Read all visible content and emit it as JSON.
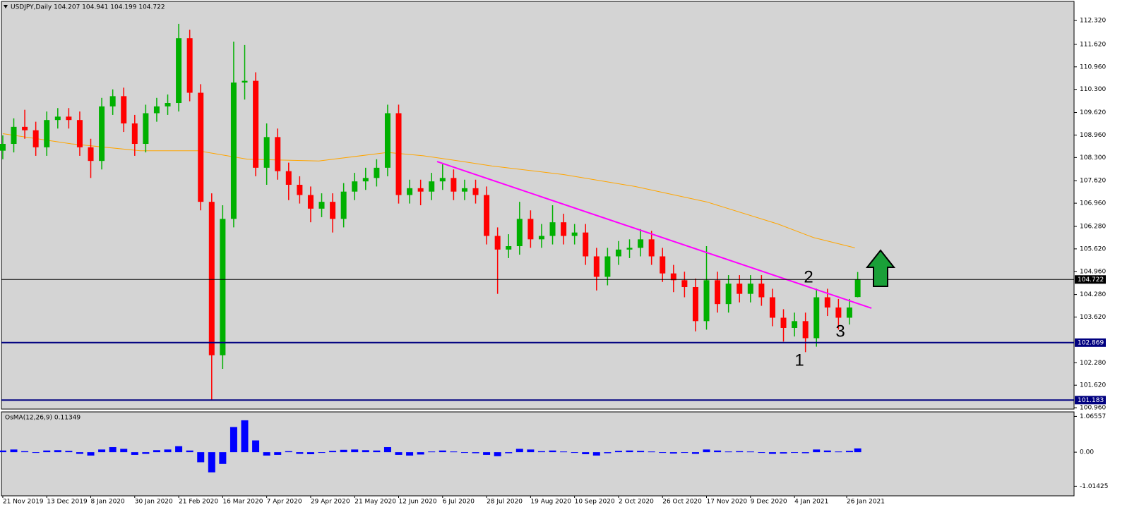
{
  "chart_data": [
    {
      "type": "candlestick",
      "title": "USDJPY,Daily  104.207 104.941 104.199 104.722",
      "up_color": "#00b000",
      "down_color": "#ff0000",
      "x": [
        0,
        4,
        8,
        12,
        16,
        20,
        24,
        28,
        32,
        36,
        40,
        44,
        48,
        52,
        56,
        60,
        64,
        68,
        72,
        76,
        80,
        84,
        88,
        92,
        96,
        100,
        104,
        108,
        112,
        116,
        120,
        124,
        128,
        132,
        136,
        140,
        144,
        148,
        152,
        156,
        160,
        164,
        168,
        172,
        176,
        180,
        184,
        188,
        192,
        196,
        200,
        204,
        208,
        212,
        216,
        220,
        224,
        228,
        232,
        236,
        240,
        244,
        248,
        252,
        256,
        260,
        264,
        268,
        272,
        276,
        280,
        284,
        288,
        292,
        296,
        300,
        304,
        308,
        311
      ],
      "open": [
        108.5,
        108.7,
        109.2,
        109.1,
        108.6,
        109.4,
        109.5,
        109.4,
        108.6,
        108.2,
        109.8,
        110.1,
        109.3,
        108.7,
        109.6,
        109.8,
        109.9,
        111.8,
        110.2,
        107.0,
        102.5,
        106.5,
        110.5,
        110.55,
        108.0,
        108.9,
        107.9,
        107.5,
        107.2,
        106.8,
        107.0,
        106.5,
        107.3,
        107.6,
        107.7,
        108.0,
        109.6,
        107.2,
        107.4,
        107.3,
        107.6,
        107.7,
        107.3,
        107.4,
        107.2,
        106.0,
        105.6,
        105.7,
        106.5,
        105.9,
        106.0,
        106.4,
        106.0,
        106.1,
        105.4,
        104.8,
        105.4,
        105.6,
        105.65,
        105.9,
        105.4,
        104.9,
        104.7,
        104.5,
        103.5,
        104.7,
        104.0,
        104.6,
        104.3,
        104.6,
        104.2,
        103.6,
        103.3,
        103.5,
        103.0,
        104.2,
        103.9,
        103.6,
        104.207
      ],
      "high": [
        108.95,
        109.45,
        109.7,
        109.35,
        109.65,
        109.75,
        109.75,
        109.65,
        108.85,
        110.05,
        110.3,
        110.35,
        109.55,
        109.85,
        110.05,
        110.15,
        112.22,
        112.05,
        110.45,
        107.25,
        106.9,
        111.7,
        111.6,
        110.8,
        109.3,
        109.15,
        108.15,
        107.75,
        107.45,
        107.25,
        107.25,
        107.55,
        107.85,
        108.0,
        108.25,
        109.85,
        109.85,
        107.65,
        107.65,
        107.85,
        108.1,
        107.95,
        107.65,
        107.65,
        107.45,
        106.25,
        106.05,
        107.0,
        106.75,
        106.35,
        106.9,
        106.65,
        106.35,
        106.35,
        105.65,
        105.65,
        105.85,
        105.9,
        106.2,
        106.15,
        105.65,
        105.15,
        104.95,
        104.75,
        105.7,
        104.95,
        104.85,
        104.85,
        104.85,
        104.85,
        104.45,
        103.85,
        103.75,
        103.75,
        104.45,
        104.45,
        104.15,
        104.15,
        104.941
      ],
      "low": [
        108.25,
        108.45,
        108.85,
        108.35,
        108.35,
        109.15,
        109.15,
        108.35,
        107.7,
        107.95,
        109.55,
        109.05,
        108.35,
        108.45,
        109.35,
        109.55,
        109.65,
        109.95,
        106.75,
        101.18,
        102.1,
        106.25,
        110.0,
        107.75,
        107.5,
        107.65,
        107.05,
        106.95,
        106.4,
        106.55,
        106.1,
        106.25,
        107.05,
        107.35,
        107.45,
        107.75,
        106.95,
        106.95,
        106.9,
        107.05,
        107.35,
        107.05,
        107.05,
        106.95,
        105.75,
        104.3,
        105.35,
        105.45,
        105.65,
        105.65,
        105.75,
        105.75,
        105.75,
        105.15,
        104.4,
        104.55,
        105.15,
        105.35,
        105.4,
        105.15,
        104.65,
        104.35,
        104.2,
        103.2,
        103.25,
        103.75,
        103.75,
        104.05,
        104.05,
        103.95,
        103.35,
        102.9,
        103.05,
        102.59,
        102.75,
        103.65,
        103.25,
        103.4,
        104.199
      ],
      "close": [
        108.7,
        109.2,
        109.1,
        108.6,
        109.4,
        109.5,
        109.4,
        108.6,
        108.2,
        109.8,
        110.1,
        109.3,
        108.7,
        109.6,
        109.8,
        109.9,
        111.8,
        110.2,
        107.0,
        102.5,
        106.5,
        110.5,
        110.55,
        108.0,
        108.9,
        107.9,
        107.5,
        107.2,
        106.8,
        107.0,
        106.5,
        107.3,
        107.6,
        107.7,
        108.0,
        109.6,
        107.2,
        107.4,
        107.3,
        107.6,
        107.7,
        107.3,
        107.4,
        107.2,
        106.0,
        105.6,
        105.7,
        106.5,
        105.9,
        106.0,
        106.4,
        106.0,
        106.1,
        105.4,
        104.8,
        105.4,
        105.6,
        105.65,
        105.9,
        105.4,
        104.9,
        104.7,
        104.5,
        103.5,
        104.7,
        104.0,
        104.6,
        104.3,
        104.6,
        104.2,
        103.6,
        103.3,
        103.5,
        103.0,
        104.2,
        103.9,
        103.6,
        103.9,
        104.722
      ],
      "ma": {
        "color": "#ffa500",
        "x": [
          0,
          25,
          50,
          71,
          89,
          115,
          140,
          153,
          166,
          178,
          204,
          230,
          256,
          282,
          295,
          310
        ],
        "values": [
          109.0,
          108.7,
          108.5,
          108.5,
          108.25,
          108.2,
          108.45,
          108.35,
          108.2,
          108.05,
          107.8,
          107.45,
          107.0,
          106.35,
          105.95,
          105.65
        ]
      },
      "trendline": {
        "color": "#ff00ff",
        "x": [
          158,
          316
        ],
        "values": [
          108.18,
          103.88
        ]
      },
      "hlines": [
        {
          "value": 104.722,
          "label": "104.722",
          "color": "#000000"
        },
        {
          "value": 102.869,
          "label": "102.869",
          "color": "#000080"
        },
        {
          "value": 101.183,
          "label": "101.183",
          "color": "#000080"
        }
      ],
      "annotations": [
        "1",
        "2",
        "3"
      ],
      "xlim": [
        -0.5,
        389.7
      ],
      "ylim": [
        100.92,
        112.88
      ],
      "yticks": [
        {
          "value": 112.32,
          "label": "112.320"
        },
        {
          "value": 111.62,
          "label": "111.620"
        },
        {
          "value": 110.96,
          "label": "110.960"
        },
        {
          "value": 110.3,
          "label": "110.300"
        },
        {
          "value": 109.62,
          "label": "109.620"
        },
        {
          "value": 108.96,
          "label": "108.960"
        },
        {
          "value": 108.3,
          "label": "108.300"
        },
        {
          "value": 107.62,
          "label": "107.620"
        },
        {
          "value": 106.96,
          "label": "106.960"
        },
        {
          "value": 106.28,
          "label": "106.280"
        },
        {
          "value": 105.62,
          "label": "105.620"
        },
        {
          "value": 104.96,
          "label": "104.960"
        },
        {
          "value": 104.28,
          "label": "104.280"
        },
        {
          "value": 103.62,
          "label": "103.620"
        },
        {
          "value": 102.28,
          "label": "102.280"
        },
        {
          "value": 101.62,
          "label": "101.620"
        },
        {
          "value": 100.96,
          "label": "100.960"
        }
      ]
    },
    {
      "type": "bar",
      "title": "OsMA(12,26,9) 0.11349",
      "color": "#0000ff",
      "x": [
        0,
        4,
        8,
        12,
        16,
        20,
        24,
        28,
        32,
        36,
        40,
        44,
        48,
        52,
        56,
        60,
        64,
        68,
        72,
        76,
        80,
        84,
        88,
        92,
        96,
        100,
        104,
        108,
        112,
        116,
        120,
        124,
        128,
        132,
        136,
        140,
        144,
        148,
        152,
        156,
        160,
        164,
        168,
        172,
        176,
        180,
        184,
        188,
        192,
        196,
        200,
        204,
        208,
        212,
        216,
        220,
        224,
        228,
        232,
        236,
        240,
        244,
        248,
        252,
        256,
        260,
        264,
        268,
        272,
        276,
        280,
        284,
        288,
        292,
        296,
        300,
        304,
        308,
        311
      ],
      "values": [
        0.05,
        0.08,
        0.03,
        -0.02,
        0.05,
        0.06,
        0.04,
        -0.05,
        -0.1,
        0.08,
        0.15,
        0.1,
        -0.08,
        -0.05,
        0.06,
        0.08,
        0.18,
        0.05,
        -0.3,
        -0.6,
        -0.35,
        0.75,
        0.95,
        0.35,
        -0.1,
        -0.08,
        0.03,
        -0.05,
        -0.06,
        -0.02,
        0.04,
        0.07,
        0.08,
        0.06,
        0.05,
        0.15,
        -0.08,
        -0.1,
        -0.07,
        0.02,
        0.05,
        0.02,
        -0.02,
        -0.03,
        -0.08,
        -0.12,
        -0.03,
        0.1,
        0.08,
        0.03,
        0.05,
        0.02,
        -0.02,
        -0.06,
        -0.1,
        -0.03,
        0.04,
        0.05,
        0.04,
        0.02,
        -0.02,
        -0.04,
        -0.02,
        -0.05,
        0.08,
        0.05,
        0.02,
        0.03,
        0.02,
        -0.02,
        -0.05,
        -0.04,
        -0.02,
        -0.03,
        0.08,
        0.05,
        0.02,
        0.04,
        0.11349
      ],
      "xlim": [
        -0.5,
        389.7
      ],
      "ylim": [
        -1.3,
        1.2
      ],
      "yticks": [
        1.06557,
        {
          "value": 0,
          "label": "0.00"
        },
        -1.01425
      ],
      "xticks": [
        {
          "value": 0,
          "label": "21 Nov 2019"
        },
        {
          "value": 16,
          "label": "13 Dec 2019"
        },
        {
          "value": 32,
          "label": "8 Jan 2020"
        },
        {
          "value": 48,
          "label": "30 Jan 2020"
        },
        {
          "value": 64,
          "label": "21 Feb 2020"
        },
        {
          "value": 80,
          "label": "16 Mar 2020"
        },
        {
          "value": 96,
          "label": "7 Apr 2020"
        },
        {
          "value": 112,
          "label": "29 Apr 2020"
        },
        {
          "value": 128,
          "label": "21 May 2020"
        },
        {
          "value": 144,
          "label": "12 Jun 2020"
        },
        {
          "value": 160,
          "label": "6 Jul 2020"
        },
        {
          "value": 176,
          "label": "28 Jul 2020"
        },
        {
          "value": 192,
          "label": "19 Aug 2020"
        },
        {
          "value": 208,
          "label": "10 Sep 2020"
        },
        {
          "value": 224,
          "label": "2 Oct 2020"
        },
        {
          "value": 240,
          "label": "26 Oct 2020"
        },
        {
          "value": 256,
          "label": "17 Nov 2020"
        },
        {
          "value": 272,
          "label": "9 Dec 2020"
        },
        {
          "value": 288,
          "label": "4 Jan 2021"
        },
        {
          "value": 307,
          "label": "26 Jan 2021"
        }
      ]
    }
  ]
}
